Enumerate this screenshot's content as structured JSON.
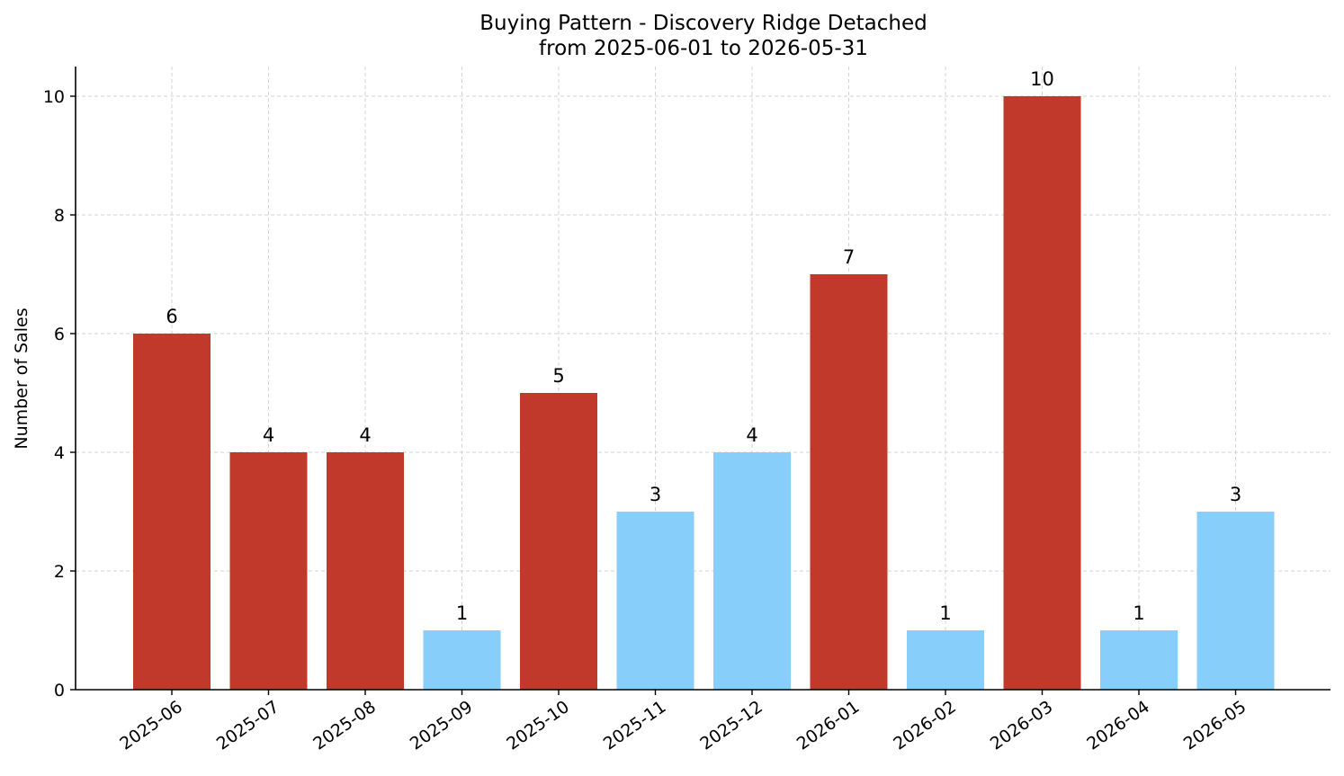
{
  "chart_data": {
    "type": "bar",
    "title": "Buying Pattern - Discovery Ridge Detached",
    "subtitle": "from 2025-06-01 to 2026-05-31",
    "xlabel": "",
    "ylabel": "Number of Sales",
    "ylim": [
      0,
      10.5
    ],
    "yticks": [
      0,
      2,
      4,
      6,
      8,
      10
    ],
    "grid": true,
    "categories": [
      "2025-06",
      "2025-07",
      "2025-08",
      "2025-09",
      "2025-10",
      "2025-11",
      "2025-12",
      "2026-01",
      "2026-02",
      "2026-03",
      "2026-04",
      "2026-05"
    ],
    "values": [
      6,
      4,
      4,
      1,
      5,
      3,
      4,
      7,
      1,
      10,
      1,
      3
    ],
    "colors": [
      "#c0392b",
      "#c0392b",
      "#c0392b",
      "#87cefa",
      "#c0392b",
      "#87cefa",
      "#87cefa",
      "#c0392b",
      "#87cefa",
      "#c0392b",
      "#87cefa",
      "#87cefa"
    ]
  }
}
